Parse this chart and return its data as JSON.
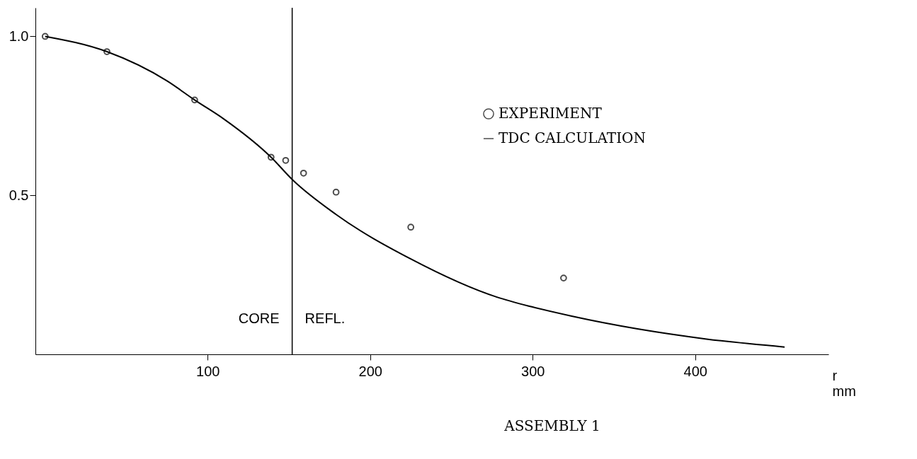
{
  "chart_data": {
    "type": "scatter",
    "title": "ASSEMBLY 1",
    "xlabel": "r mm",
    "xlim": [
      -6,
      482
    ],
    "ylim": [
      0,
      1.09
    ],
    "xticks": [
      100,
      200,
      300,
      400
    ],
    "yticks": [
      {
        "value": 0.5,
        "label": "0.5"
      },
      {
        "value": 1,
        "label": "1.0"
      }
    ],
    "grid": false,
    "legend": "right",
    "series": [
      {
        "name": "EXPERIMENT",
        "marker": "circle",
        "color": "#000000",
        "x": [
          0,
          38,
          92,
          139,
          148,
          159,
          179,
          225,
          319
        ],
        "values": [
          1.0,
          0.952,
          0.8,
          0.62,
          0.61,
          0.57,
          0.51,
          0.4,
          0.24
        ]
      },
      {
        "name": "TDC CALCULATION",
        "type": "line",
        "color": "#000000",
        "x": [
          0,
          38,
          75,
          92,
          110,
          139,
          152,
          179,
          225,
          278,
          299,
          324,
          407,
          455
        ],
        "values": [
          1.0,
          0.952,
          0.86,
          0.8,
          0.74,
          0.62,
          0.55,
          0.44,
          0.3,
          0.18,
          0.15,
          0.12,
          0.048,
          0.023
        ]
      }
    ],
    "ref_lines": [
      {
        "axis": "x",
        "value": 152,
        "color": "#000000"
      }
    ],
    "annotations": [
      "CORE",
      "REFL."
    ]
  }
}
